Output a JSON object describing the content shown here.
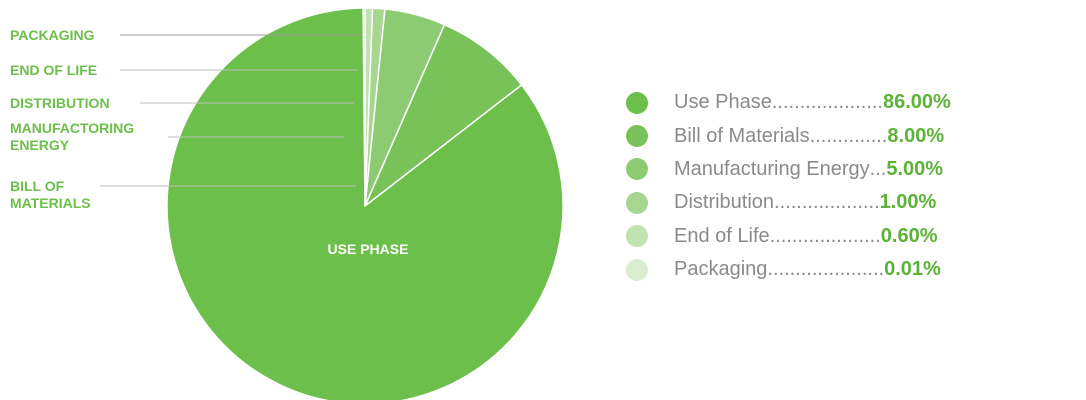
{
  "chart_data": {
    "type": "pie",
    "slices": [
      {
        "label": "USE PHASE",
        "legend": "Use Phase",
        "dots": " ....................",
        "value_text": "86.00%",
        "value": 86.0,
        "color": "#6cbf4a"
      },
      {
        "label": "BILL OF MATERIALS",
        "legend": "Bill of Materials",
        "dots": "..............",
        "value_text": "8.00%",
        "value": 8.0,
        "color": "#79c25a"
      },
      {
        "label": "MANUFACTORING ENERGY",
        "legend": "Manufacturing Energy",
        "dots": " ...",
        "value_text": "5.00%",
        "value": 5.0,
        "color": "#8ccb71"
      },
      {
        "label": "DISTRIBUTION",
        "legend": "Distribution",
        "dots": " ...................",
        "value_text": "1.00%",
        "value": 1.0,
        "color": "#a6d690"
      },
      {
        "label": "END OF LIFE",
        "legend": "End of Life",
        "dots": " ....................",
        "value_text": "0.60%",
        "value": 0.6,
        "color": "#bfe2b0"
      },
      {
        "label": "PACKAGING",
        "legend": "Packaging",
        "dots": ".....................",
        "value_text": "0.01%",
        "value": 0.01,
        "color": "#d9eed0"
      }
    ]
  }
}
